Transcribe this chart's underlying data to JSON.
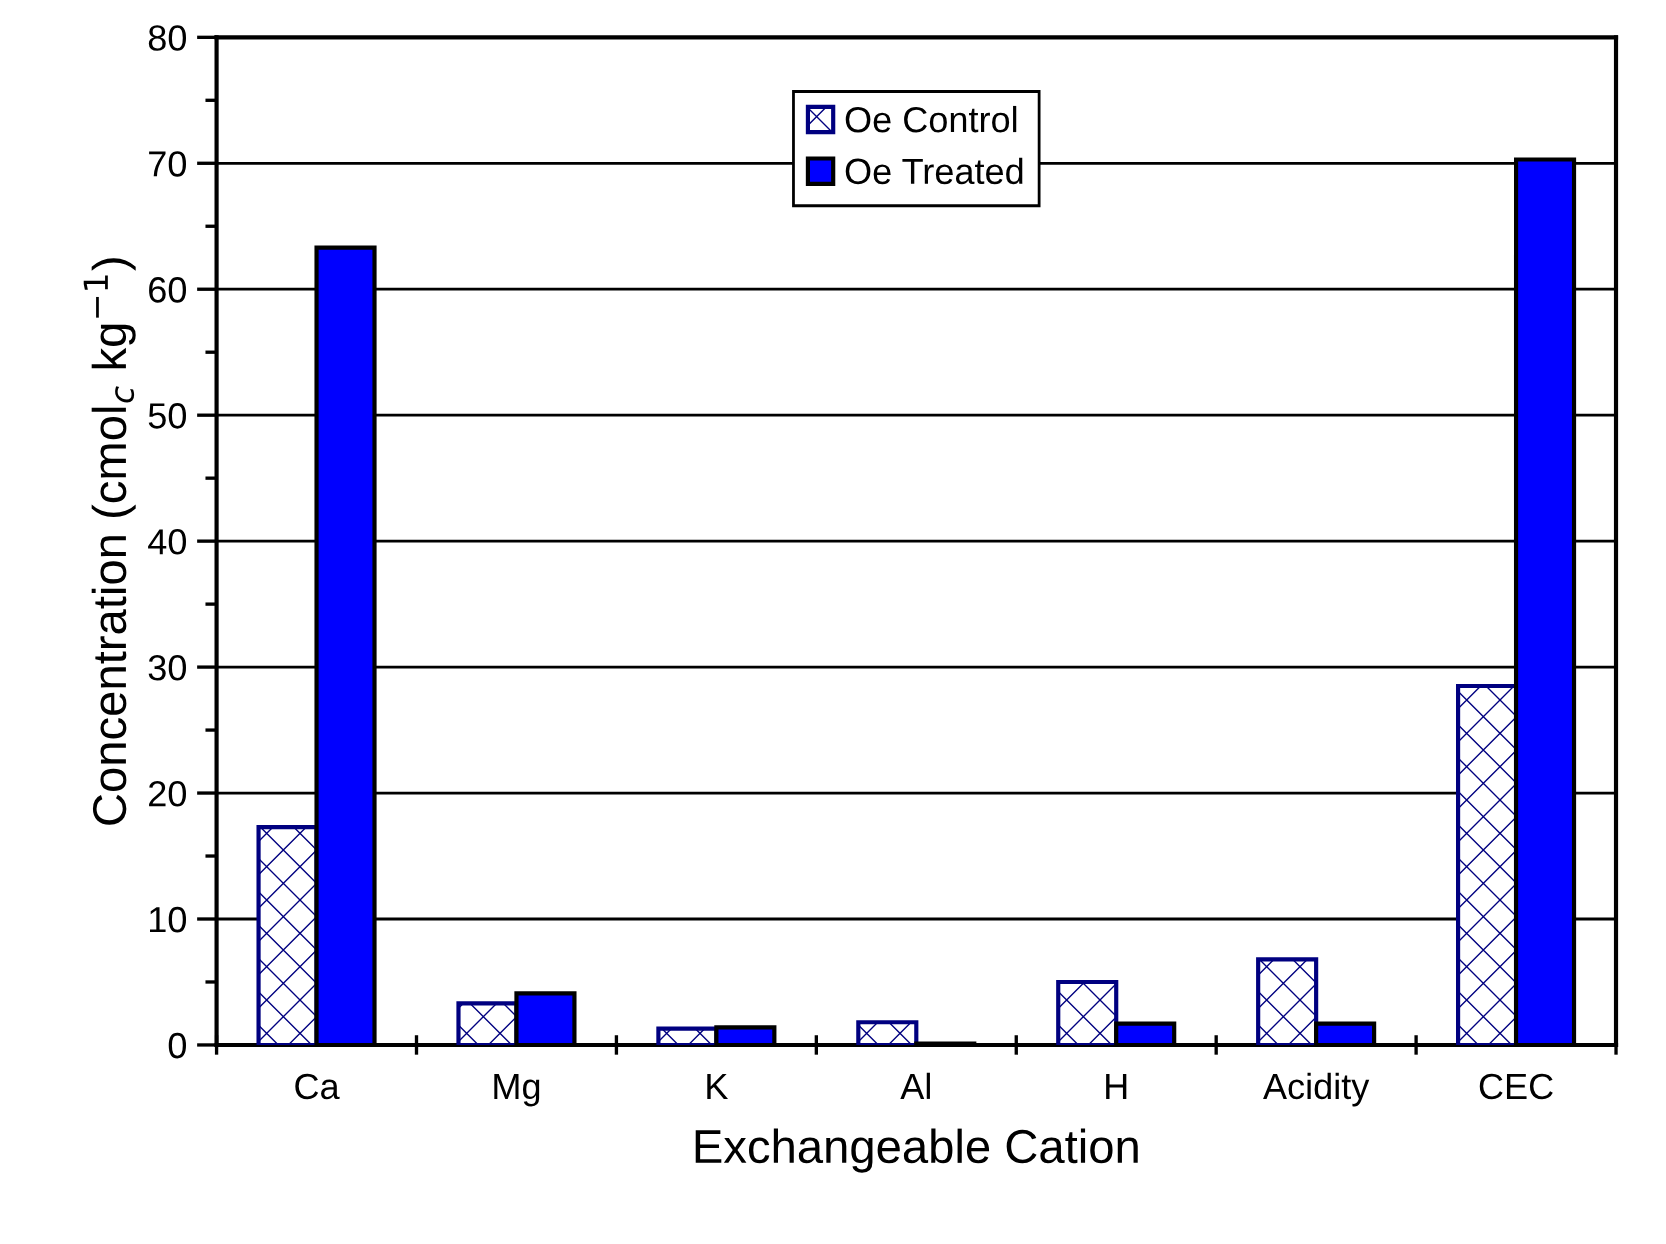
{
  "chart_data": {
    "type": "bar",
    "xlabel": "Exchangeable Cation",
    "ylabel": "Concentration (cmol$_{c}$ kg$^{−1}$)",
    "categories": [
      "Ca",
      "Mg",
      "K",
      "Al",
      "H",
      "Acidity",
      "CEC"
    ],
    "series": [
      {
        "name": "Oe Control",
        "color": "#000080",
        "values": [
          17.3,
          3.3,
          1.3,
          1.8,
          5.0,
          6.8,
          28.5
        ]
      },
      {
        "name": "Oe Treated",
        "color": "#0000ff",
        "values": [
          63.3,
          4.1,
          1.4,
          0.1,
          1.7,
          1.7,
          70.3
        ]
      }
    ],
    "ylim": [
      0,
      80
    ],
    "yticks": [
      0,
      10,
      20,
      30,
      40,
      50,
      60,
      70,
      80
    ],
    "grid": "y",
    "legend": "top"
  }
}
